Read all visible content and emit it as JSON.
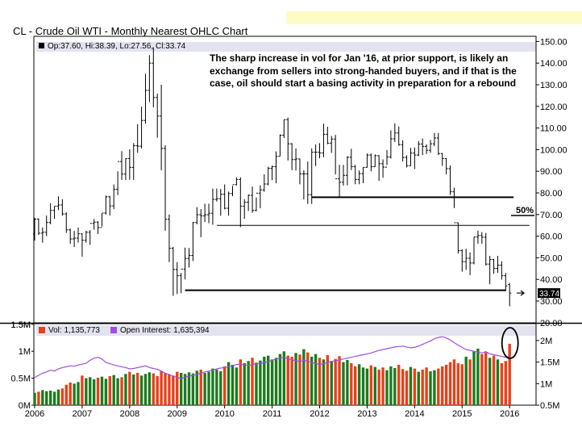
{
  "banner": {
    "color": "#fefcc5"
  },
  "title": "CL - Crude Oil WTI - Monthly Nearest OHLC Chart",
  "ohlc_legend": "Op:37.60, Hi:38.39, Lo:27.56, Cl:33.74",
  "annotation": "The sharp increase in vol for Jan '16, at prior support, is likely an exchange from sellers into strong-handed buyers, and if that is the case, oil should start a basing activity in preparation for a rebound",
  "volume_legend": "Vol: 1,135,773",
  "oi_legend": "Open Interest: 1,635,394",
  "colors": {
    "up": "#1e7a1e",
    "down": "#e8401a",
    "oi": "#9d4fe0",
    "price": "#000000",
    "panel_label": "#e3e3ef"
  },
  "chart_data": [
    {
      "type": "ohlc",
      "title": "CL - Crude Oil WTI - Monthly Nearest OHLC Chart",
      "x_ticks": [
        "2006",
        "2007",
        "2008",
        "2009",
        "2010",
        "2011",
        "2012",
        "2013",
        "2014",
        "2015",
        "2016"
      ],
      "ylim": [
        24,
        150
      ],
      "y_ticks": [
        30,
        40,
        50,
        60,
        70,
        80,
        90,
        100,
        110,
        120,
        130,
        140,
        150
      ],
      "grid": false,
      "last_price_label": "33.74",
      "support_lines": [
        {
          "value": 78,
          "from": "2011-11",
          "to": "2016-02"
        },
        {
          "value": 65,
          "from": "2009-11",
          "to": "2016-06"
        },
        {
          "value": 35,
          "from": "2009-03",
          "to": "2015-12"
        }
      ],
      "level_label": "50%",
      "bars": [
        [
          61.0,
          68.5,
          58.0,
          67.9
        ],
        [
          67.9,
          68.2,
          60.5,
          61.4
        ],
        [
          61.4,
          64.0,
          57.0,
          61.8
        ],
        [
          61.8,
          69.5,
          60.0,
          66.3
        ],
        [
          66.3,
          75.2,
          65.5,
          71.9
        ],
        [
          71.9,
          73.8,
          68.0,
          73.9
        ],
        [
          73.9,
          78.4,
          72.0,
          74.4
        ],
        [
          74.4,
          77.1,
          69.5,
          70.3
        ],
        [
          70.3,
          71.0,
          61.5,
          62.9
        ],
        [
          62.9,
          63.5,
          56.5,
          58.7
        ],
        [
          58.7,
          62.4,
          55.0,
          59.1
        ],
        [
          59.1,
          64.0,
          57.0,
          61.1
        ],
        [
          61.1,
          61.2,
          50.5,
          58.1
        ],
        [
          58.1,
          62.5,
          57.0,
          61.8
        ],
        [
          61.8,
          62.8,
          56.0,
          65.9
        ],
        [
          65.9,
          67.9,
          63.0,
          66.5
        ],
        [
          66.5,
          66.9,
          61.0,
          64.0
        ],
        [
          64.0,
          70.5,
          64.5,
          70.7
        ],
        [
          70.7,
          78.8,
          70.0,
          78.2
        ],
        [
          78.2,
          78.6,
          69.5,
          74.0
        ],
        [
          74.0,
          83.9,
          72.5,
          81.7
        ],
        [
          81.7,
          90.0,
          79.0,
          94.5
        ],
        [
          94.5,
          99.3,
          86.0,
          88.7
        ],
        [
          88.7,
          96.0,
          86.0,
          95.9
        ],
        [
          95.9,
          100.1,
          86.1,
          91.8
        ],
        [
          91.8,
          103.0,
          86.0,
          101.8
        ],
        [
          101.8,
          111.8,
          98.5,
          101.6
        ],
        [
          101.6,
          119.9,
          100.5,
          113.5
        ],
        [
          113.5,
          135.1,
          112.0,
          127.4
        ],
        [
          127.4,
          143.7,
          122.0,
          140.0
        ],
        [
          140.0,
          147.3,
          119.5,
          124.1
        ],
        [
          124.1,
          125.9,
          105.5,
          115.5
        ],
        [
          115.5,
          130.0,
          90.5,
          100.6
        ],
        [
          100.6,
          102.0,
          62.5,
          67.8
        ],
        [
          67.8,
          70.0,
          48.0,
          54.4
        ],
        [
          54.4,
          55.0,
          32.4,
          44.6
        ],
        [
          44.6,
          48.0,
          33.2,
          41.7
        ],
        [
          41.7,
          43.0,
          33.6,
          44.8
        ],
        [
          44.8,
          54.7,
          40.0,
          49.7
        ],
        [
          49.7,
          54.5,
          45.5,
          51.1
        ],
        [
          51.1,
          66.5,
          48.5,
          66.3
        ],
        [
          66.3,
          73.4,
          65.5,
          69.9
        ],
        [
          69.9,
          72.5,
          59.5,
          69.4
        ],
        [
          69.4,
          75.0,
          66.5,
          69.9
        ],
        [
          69.9,
          75.0,
          66.0,
          70.6
        ],
        [
          70.6,
          82.0,
          65.3,
          77.0
        ],
        [
          77.0,
          82.0,
          76.0,
          77.3
        ],
        [
          77.3,
          81.8,
          69.5,
          79.4
        ],
        [
          79.4,
          83.9,
          72.4,
          72.9
        ],
        [
          72.9,
          80.6,
          69.5,
          79.7
        ],
        [
          79.7,
          83.2,
          78.5,
          83.8
        ],
        [
          83.8,
          87.2,
          83.5,
          86.2
        ],
        [
          86.2,
          87.2,
          64.2,
          73.9
        ],
        [
          73.9,
          77.1,
          68.0,
          75.7
        ],
        [
          75.7,
          79.3,
          71.7,
          78.9
        ],
        [
          78.9,
          82.9,
          70.8,
          71.9
        ],
        [
          71.9,
          77.9,
          71.5,
          79.9
        ],
        [
          79.9,
          83.5,
          72.9,
          81.4
        ],
        [
          81.4,
          88.6,
          80.5,
          84.1
        ],
        [
          84.1,
          92.1,
          83.5,
          91.4
        ],
        [
          91.4,
          92.6,
          85.9,
          92.2
        ],
        [
          92.2,
          99.2,
          84.5,
          96.9
        ],
        [
          96.9,
          107.0,
          97.0,
          106.7
        ],
        [
          106.7,
          113.9,
          105.4,
          113.9
        ],
        [
          113.9,
          114.8,
          95.0,
          102.7
        ],
        [
          102.7,
          103.0,
          90.5,
          95.4
        ],
        [
          95.4,
          100.6,
          90.3,
          95.7
        ],
        [
          95.7,
          95.8,
          84.0,
          88.8
        ],
        [
          88.8,
          90.5,
          77.0,
          88.8
        ],
        [
          88.8,
          94.5,
          74.9,
          79.2
        ],
        [
          79.2,
          100.6,
          74.9,
          98.8
        ],
        [
          98.8,
          102.4,
          92.4,
          98.8
        ],
        [
          98.8,
          103.0,
          96.0,
          98.5
        ],
        [
          98.5,
          112.0,
          96.5,
          107.1
        ],
        [
          107.1,
          110.6,
          102.5,
          103.0
        ],
        [
          103.0,
          106.3,
          98.5,
          104.9
        ],
        [
          104.9,
          106.8,
          88.6,
          86.5
        ],
        [
          86.5,
          93.0,
          77.8,
          84.9
        ],
        [
          84.9,
          92.9,
          83.4,
          88.1
        ],
        [
          88.1,
          97.0,
          83.5,
          96.5
        ],
        [
          96.5,
          100.4,
          90.5,
          92.2
        ],
        [
          92.2,
          92.9,
          84.0,
          86.2
        ],
        [
          86.2,
          90.4,
          84.0,
          88.9
        ],
        [
          88.9,
          91.8,
          84.5,
          91.8
        ],
        [
          91.8,
          98.2,
          91.7,
          97.5
        ],
        [
          97.5,
          98.2,
          90.0,
          92.1
        ],
        [
          92.1,
          97.8,
          92.0,
          97.2
        ],
        [
          97.2,
          97.4,
          85.6,
          93.5
        ],
        [
          93.5,
          95.5,
          87.0,
          91.9
        ],
        [
          91.9,
          99.8,
          92.9,
          96.6
        ],
        [
          96.6,
          108.9,
          95.9,
          105.0
        ],
        [
          105.0,
          112.2,
          103.5,
          107.7
        ],
        [
          107.7,
          110.7,
          101.8,
          102.3
        ],
        [
          102.3,
          104.3,
          94.5,
          96.4
        ],
        [
          96.4,
          97.4,
          91.8,
          92.6
        ],
        [
          92.6,
          100.8,
          92.4,
          98.4
        ],
        [
          98.4,
          101.0,
          91.0,
          97.5
        ],
        [
          97.5,
          104.0,
          97.0,
          102.6
        ],
        [
          102.6,
          105.2,
          97.5,
          101.5
        ],
        [
          101.5,
          102.5,
          98.0,
          99.7
        ],
        [
          99.7,
          104.5,
          98.5,
          102.7
        ],
        [
          102.7,
          107.7,
          101.6,
          105.4
        ],
        [
          105.4,
          107.7,
          97.5,
          98.2
        ],
        [
          98.2,
          98.4,
          92.5,
          95.9
        ],
        [
          95.9,
          96.0,
          88.6,
          91.2
        ],
        [
          91.2,
          92.7,
          79.0,
          80.5
        ],
        [
          80.5,
          82.4,
          73.0,
          66.2
        ],
        [
          66.2,
          66.3,
          52.0,
          53.3
        ],
        [
          53.3,
          54.0,
          43.6,
          48.2
        ],
        [
          48.2,
          54.2,
          44.4,
          49.8
        ],
        [
          49.8,
          52.5,
          42.0,
          47.6
        ],
        [
          47.6,
          59.6,
          47.0,
          59.6
        ],
        [
          59.6,
          62.6,
          56.5,
          60.3
        ],
        [
          60.3,
          61.9,
          56.5,
          59.5
        ],
        [
          59.5,
          61.5,
          46.4,
          47.1
        ],
        [
          47.1,
          50.9,
          37.8,
          49.2
        ],
        [
          49.2,
          49.5,
          42.6,
          45.1
        ],
        [
          45.1,
          50.9,
          43.0,
          46.6
        ],
        [
          46.6,
          48.4,
          39.9,
          41.7
        ],
        [
          41.7,
          43.0,
          34.5,
          37.0
        ],
        [
          37.6,
          38.4,
          27.6,
          33.7
        ]
      ]
    },
    {
      "type": "bar+line",
      "x_ticks": [
        "2006",
        "2007",
        "2008",
        "2009",
        "2010",
        "2011",
        "2012",
        "2013",
        "2014",
        "2015",
        "2016"
      ],
      "ylim_left": [
        0,
        1500000
      ],
      "y_ticks_left": [
        "0M",
        "0.5M",
        "1M",
        "1.5M"
      ],
      "y_ticks_right": [
        "0.5M",
        "1M",
        "1.5M",
        "2M"
      ],
      "volume_series_name": "Vol",
      "oi_series_name": "Open Interest",
      "volume": [
        0.23,
        0.25,
        0.28,
        0.26,
        0.27,
        0.25,
        0.29,
        0.31,
        0.38,
        0.42,
        0.4,
        0.43,
        0.55,
        0.5,
        0.52,
        0.48,
        0.51,
        0.53,
        0.49,
        0.54,
        0.56,
        0.5,
        0.52,
        0.58,
        0.62,
        0.57,
        0.6,
        0.55,
        0.58,
        0.61,
        0.59,
        0.54,
        0.63,
        0.6,
        0.57,
        0.55,
        0.62,
        0.6,
        0.58,
        0.61,
        0.59,
        0.64,
        0.66,
        0.6,
        0.62,
        0.68,
        0.66,
        0.63,
        0.72,
        0.8,
        0.75,
        0.7,
        0.85,
        0.78,
        0.82,
        0.88,
        0.79,
        0.83,
        0.9,
        0.92,
        0.85,
        0.88,
        0.95,
        1.0,
        0.92,
        0.9,
        0.97,
        0.94,
        1.04,
        0.98,
        0.9,
        0.95,
        0.88,
        0.85,
        0.93,
        0.82,
        0.86,
        0.91,
        0.8,
        0.84,
        0.78,
        0.72,
        0.76,
        0.7,
        0.68,
        0.74,
        0.71,
        0.66,
        0.7,
        0.65,
        0.72,
        0.69,
        0.75,
        0.67,
        0.64,
        0.71,
        0.68,
        0.62,
        0.66,
        0.7,
        0.63,
        0.65,
        0.68,
        0.72,
        0.75,
        0.8,
        0.85,
        0.78,
        0.76,
        0.9,
        0.85,
        1.0,
        1.05,
        0.95,
        0.98,
        0.88,
        0.92,
        0.85,
        0.78,
        0.82,
        1.14
      ],
      "volume_colors": "up if month closed higher, down otherwise",
      "open_interest": [
        1.15,
        1.2,
        1.25,
        1.28,
        1.32,
        1.3,
        1.35,
        1.38,
        1.4,
        1.42,
        1.41,
        1.44,
        1.46,
        1.48,
        1.55,
        1.6,
        1.62,
        1.58,
        1.5,
        1.47,
        1.44,
        1.42,
        1.4,
        1.38,
        1.35,
        1.36,
        1.38,
        1.4,
        1.42,
        1.38,
        1.36,
        1.34,
        1.3,
        1.25,
        1.22,
        1.18,
        1.15,
        1.12,
        1.16,
        1.18,
        1.2,
        1.22,
        1.25,
        1.28,
        1.3,
        1.32,
        1.35,
        1.37,
        1.38,
        1.4,
        1.42,
        1.45,
        1.46,
        1.44,
        1.43,
        1.45,
        1.47,
        1.48,
        1.5,
        1.52,
        1.55,
        1.58,
        1.6,
        1.62,
        1.59,
        1.56,
        1.54,
        1.52,
        1.55,
        1.53,
        1.5,
        1.48,
        1.45,
        1.47,
        1.5,
        1.52,
        1.54,
        1.56,
        1.58,
        1.6,
        1.62,
        1.64,
        1.66,
        1.68,
        1.7,
        1.72,
        1.75,
        1.78,
        1.8,
        1.82,
        1.84,
        1.86,
        1.87,
        1.88,
        1.86,
        1.84,
        1.85,
        1.88,
        1.92,
        1.96,
        2.0,
        2.05,
        2.08,
        2.1,
        2.07,
        2.02,
        1.96,
        1.9,
        1.85,
        1.8,
        1.78,
        1.76,
        1.74,
        1.72,
        1.75,
        1.7,
        1.68,
        1.66,
        1.64,
        1.62,
        1.64
      ]
    }
  ]
}
